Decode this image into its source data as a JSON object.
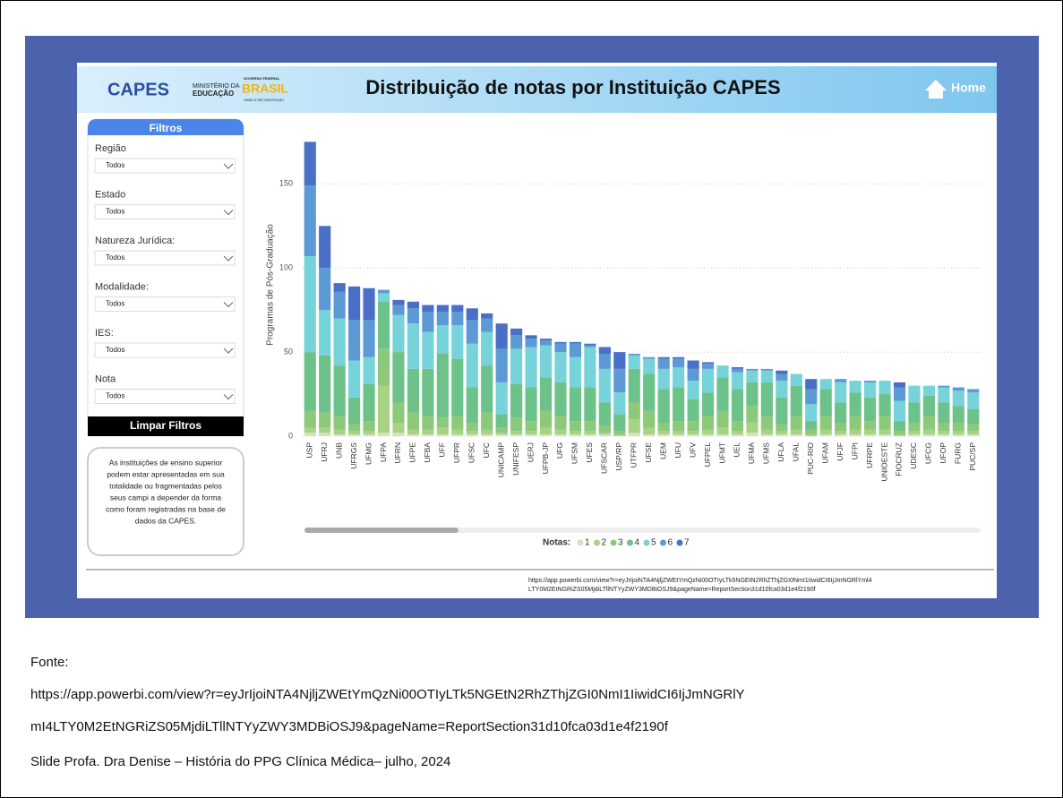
{
  "header": {
    "logo_capes": "CAPES",
    "logo_mec": [
      "MINISTÉRIO DA",
      "EDUCAÇÃO"
    ],
    "logo_gov": [
      "GOVERNO FEDERAL",
      "BRASIL",
      "UNIÃO E RECONSTRUÇÃO"
    ],
    "title": "Distribuição de notas por Instituição CAPES",
    "home": "Home"
  },
  "filters": {
    "title": "Filtros",
    "fields": [
      {
        "label": "Região",
        "value": "Todos"
      },
      {
        "label": "Estado",
        "value": "Todos"
      },
      {
        "label": "Natureza Jurídica:",
        "value": "Todos"
      },
      {
        "label": "Modalidade:",
        "value": "Todos"
      },
      {
        "label": "IES:",
        "value": "Todos"
      },
      {
        "label": "Nota",
        "value": "Todos"
      }
    ],
    "clear": "Limpar Filtros"
  },
  "note": [
    "As instituições de ensino superior",
    "podem estar apresentadas em sua",
    "totalidade ou fragmentadas pelos",
    "seus campi a depender da forma",
    "como foram registradas na base de",
    "dados da CAPES."
  ],
  "chart_data": {
    "type": "stacked_bar",
    "y_label": "Programas de Pós-Graduação",
    "legend_title": "Notas:",
    "legend_position": "bottom",
    "grid": true,
    "ylim": [
      0,
      180
    ],
    "yticks": [
      0,
      50,
      100,
      150
    ],
    "categories": [
      "USP",
      "UFRJ",
      "UNB",
      "UFRGS",
      "UFMG",
      "UFPA",
      "UFRN",
      "UFPE",
      "UFBA",
      "UFF",
      "UFPR",
      "UFSC",
      "UFC",
      "UNICAMP",
      "UNIFESP",
      "UERJ",
      "UFPB-JP",
      "UFG",
      "UFSM",
      "UFES",
      "UFSCAR",
      "USP/RP",
      "UTFPR",
      "UFSE",
      "UEM",
      "UFU",
      "UFV",
      "UFPEL",
      "UFMT",
      "UEL",
      "UFMA",
      "UFMS",
      "UFLA",
      "UFAL",
      "PUC-RIO",
      "UFAM",
      "UFJF",
      "UFPI",
      "UFRPE",
      "UNIOESTE",
      "FIOCRUZ",
      "UDESC",
      "UFCG",
      "UFOP",
      "FURG",
      "PUC/SP"
    ],
    "series": [
      {
        "name": "1",
        "color": "#cfe6bc",
        "values": [
          2,
          2,
          1,
          1,
          1,
          2,
          2,
          1,
          1,
          1,
          1,
          1,
          1,
          1,
          1,
          1,
          1,
          1,
          1,
          1,
          1,
          0,
          2,
          1,
          1,
          1,
          1,
          1,
          1,
          1,
          2,
          1,
          1,
          1,
          0,
          1,
          1,
          1,
          1,
          1,
          0,
          1,
          1,
          1,
          1,
          1
        ]
      },
      {
        "name": "2",
        "color": "#a8d383",
        "values": [
          3,
          3,
          3,
          2,
          2,
          28,
          6,
          3,
          3,
          4,
          3,
          2,
          3,
          1,
          2,
          2,
          4,
          3,
          2,
          2,
          1,
          1,
          8,
          4,
          2,
          2,
          2,
          3,
          4,
          2,
          6,
          3,
          2,
          3,
          1,
          3,
          2,
          3,
          3,
          3,
          1,
          2,
          3,
          2,
          2,
          2
        ]
      },
      {
        "name": "3",
        "color": "#8cc97a",
        "values": [
          10,
          9,
          8,
          4,
          6,
          22,
          12,
          10,
          8,
          6,
          8,
          5,
          10,
          3,
          8,
          6,
          10,
          8,
          6,
          6,
          4,
          2,
          10,
          10,
          5,
          6,
          6,
          8,
          10,
          6,
          10,
          8,
          4,
          8,
          3,
          8,
          5,
          8,
          5,
          8,
          2,
          5,
          8,
          5,
          5,
          4
        ]
      },
      {
        "name": "4",
        "color": "#6cc289",
        "values": [
          35,
          34,
          30,
          16,
          22,
          28,
          30,
          26,
          28,
          38,
          34,
          21,
          28,
          8,
          20,
          20,
          20,
          20,
          20,
          20,
          14,
          10,
          20,
          22,
          20,
          20,
          13,
          14,
          20,
          19,
          14,
          20,
          16,
          18,
          5,
          16,
          12,
          14,
          14,
          13,
          6,
          12,
          12,
          12,
          10,
          9
        ]
      },
      {
        "name": "5",
        "color": "#76d3d9",
        "values": [
          57,
          27,
          28,
          22,
          16,
          5,
          22,
          27,
          22,
          17,
          20,
          26,
          20,
          19,
          21,
          24,
          19,
          18,
          18,
          24,
          20,
          13,
          8,
          9,
          12,
          12,
          11,
          14,
          7,
          10,
          7,
          7,
          10,
          7,
          10,
          6,
          12,
          7,
          9,
          8,
          12,
          10,
          6,
          9,
          9,
          10
        ]
      },
      {
        "name": "6",
        "color": "#5c9ad6",
        "values": [
          42,
          25,
          16,
          24,
          22,
          2,
          6,
          9,
          12,
          8,
          8,
          14,
          8,
          20,
          8,
          5,
          3,
          5,
          8,
          1,
          9,
          14,
          1,
          1,
          6,
          5,
          7,
          3,
          0,
          2,
          1,
          1,
          4,
          0,
          9,
          0,
          2,
          0,
          1,
          0,
          8,
          0,
          0,
          1,
          2,
          2
        ]
      },
      {
        "name": "7",
        "color": "#4a6fc6",
        "values": [
          26,
          25,
          5,
          20,
          19,
          0,
          3,
          4,
          4,
          4,
          4,
          7,
          3,
          15,
          4,
          2,
          1,
          1,
          1,
          1,
          4,
          10,
          0,
          0,
          1,
          1,
          5,
          1,
          0,
          1,
          0,
          0,
          2,
          0,
          6,
          0,
          0,
          0,
          0,
          0,
          3,
          0,
          0,
          0,
          0,
          0
        ]
      }
    ]
  },
  "dashboard_url": [
    "https://app.powerbi.com/view?r=eyJrIjoiNTA4NjljZWEtYmQzNi00OTIyLTk5NGEtN2RhZThjZGI0NmI1IiwidCI6IjJmNGRlYml4",
    "LTY0M2EtNGRiZS05MjdiLTllNTYyZWY3MDBiOSJ9&pageName=ReportSection31d10fca03d1e4f2190f"
  ],
  "footer": {
    "source_label": "Fonte:",
    "url": [
      "https://app.powerbi.com/view?r=eyJrIjoiNTA4NjljZWEtYmQzNi00OTIyLTk5NGEtN2RhZThjZGI0NmI1IiwidCI6IjJmNGRlY",
      "mI4LTY0M2EtNGRiZS05MjdiLTllNTYyZWY3MDBiOSJ9&pageName=ReportSection31d10fca03d1e4f2190f"
    ],
    "credit": "Slide Profa. Dra Denise – História do PPG Clínica Médica– julho, 2024"
  }
}
